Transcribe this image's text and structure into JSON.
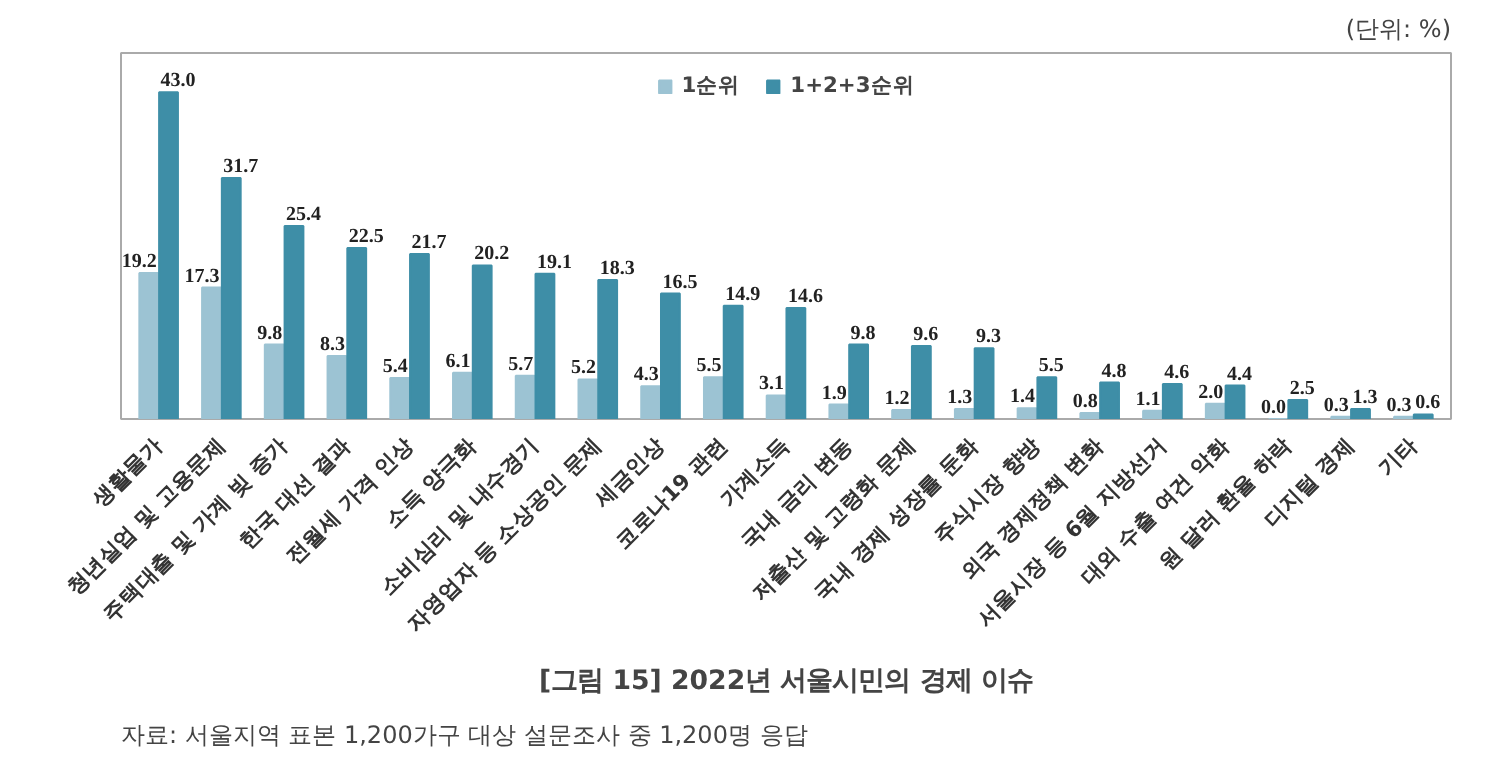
{
  "chart_data": {
    "type": "bar",
    "title": "[그림 15] 2022년 서울시민의 경제 이슈",
    "annotations": [
      "(단위: %)",
      "자료: 서울지역 표본 1,200가구 대상 설문조사 중 1,200명 응답"
    ],
    "categories": [
      "생활물가",
      "청년실업 및 고용문제",
      "주택대출 및 가계 빚 증가",
      "한국 대선 결과",
      "전월세 가격 인상",
      "소득 양극화",
      "소비심리 및 내수경기",
      "자영업자 등 소상공인 문제",
      "세금인상",
      "코로나19 관련",
      "가계소득",
      "국내 금리 변동",
      "저출산 및 고령화 문제",
      "국내 경제 성장률 둔화",
      "주식시장 향방",
      "외국 경제정책 변화",
      "서울시장 등 6월 지방선거",
      "대외 수출 여건 악화",
      "원 달러 환율 하락",
      "디지털 경제",
      "기타"
    ],
    "series": [
      {
        "name": "1순위",
        "color": "#9cc3d3",
        "values": [
          19.2,
          17.3,
          9.8,
          8.3,
          5.4,
          6.1,
          5.7,
          5.2,
          4.3,
          5.5,
          3.1,
          1.9,
          1.2,
          1.3,
          1.4,
          0.8,
          1.1,
          2.0,
          0.0,
          0.3,
          0.3
        ],
        "value_labels": [
          "19.2",
          "17.3",
          "9.8",
          "8.3",
          "5.4",
          "6.1",
          "5.7",
          "5.2",
          "4.3",
          "5.5",
          "3.1",
          "1.9",
          "1.2",
          "1.3",
          "1.4",
          "0.8",
          "1.1",
          "2.0",
          "0.0",
          "0.3",
          "0.3"
        ]
      },
      {
        "name": "1+2+3순위",
        "color": "#3e8ea7",
        "values": [
          43.0,
          31.7,
          25.4,
          22.5,
          21.7,
          20.2,
          19.1,
          18.3,
          16.5,
          14.9,
          14.6,
          9.8,
          9.6,
          9.3,
          5.5,
          4.8,
          4.6,
          4.4,
          2.5,
          1.3,
          0.6
        ],
        "value_labels": [
          "43.0",
          "31.7",
          "25.4",
          "22.5",
          "21.7",
          "20.2",
          "19.1",
          "18.3",
          "16.5",
          "14.9",
          "14.6",
          "9.8",
          "9.6",
          "9.3",
          "5.5",
          "4.8",
          "4.6",
          "4.4",
          "2.5",
          "1.3",
          "0.6"
        ]
      }
    ],
    "legend": "top",
    "grid": false,
    "tick_labels": "x"
  }
}
